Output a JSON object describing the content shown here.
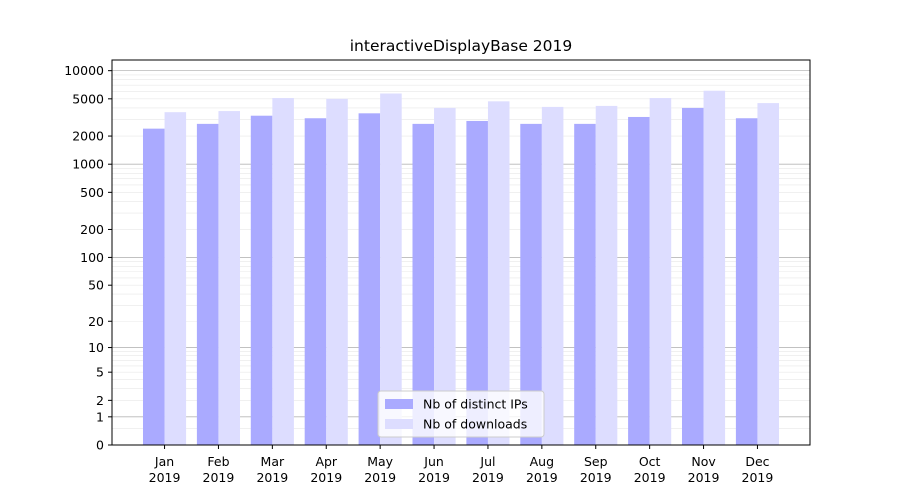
{
  "chart_data": {
    "type": "bar",
    "title": "interactiveDisplayBase 2019",
    "xlabel": "",
    "ylabel": "",
    "yscale": "symlog",
    "ylim": [
      0,
      13000
    ],
    "yticks": [
      0,
      1,
      2,
      5,
      10,
      20,
      50,
      100,
      200,
      500,
      1000,
      2000,
      5000,
      10000
    ],
    "grid": "horizontal",
    "legend_position": "lower-center",
    "categories": [
      [
        "Jan",
        "2019"
      ],
      [
        "Feb",
        "2019"
      ],
      [
        "Mar",
        "2019"
      ],
      [
        "Apr",
        "2019"
      ],
      [
        "May",
        "2019"
      ],
      [
        "Jun",
        "2019"
      ],
      [
        "Jul",
        "2019"
      ],
      [
        "Aug",
        "2019"
      ],
      [
        "Sep",
        "2019"
      ],
      [
        "Oct",
        "2019"
      ],
      [
        "Nov",
        "2019"
      ],
      [
        "Dec",
        "2019"
      ]
    ],
    "series": [
      {
        "name": "Nb of distinct IPs",
        "color": "#aaaaff",
        "values": [
          2400,
          2700,
          3300,
          3100,
          3500,
          2700,
          2900,
          2700,
          2700,
          3200,
          4000,
          3100
        ]
      },
      {
        "name": "Nb of downloads",
        "color": "#ddddff",
        "values": [
          3600,
          3700,
          5100,
          5000,
          5700,
          4000,
          4700,
          4100,
          4200,
          5100,
          6100,
          4500
        ]
      }
    ]
  }
}
